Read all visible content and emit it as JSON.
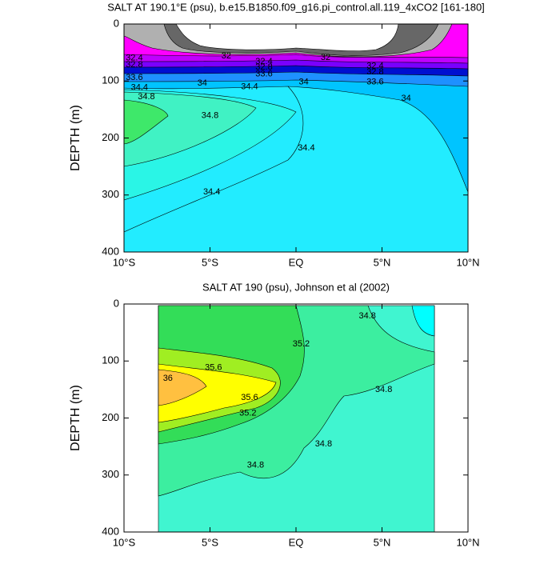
{
  "chart_data": [
    {
      "type": "contour",
      "title": "SALT AT 190.1°E (psu), b.e15.B1850.f09_g16.pi_control.all.119_4xCO2 [161-180]",
      "y_label": "DEPTH (m)",
      "xlim": [
        -10,
        10
      ],
      "ylim": [
        400,
        0
      ],
      "xticks": [
        {
          "value": -10,
          "label": "10°S"
        },
        {
          "value": -5,
          "label": "5°S"
        },
        {
          "value": 0,
          "label": "EQ"
        },
        {
          "value": 5,
          "label": "5°N"
        },
        {
          "value": 10,
          "label": "10°N"
        }
      ],
      "yticks": [
        0,
        100,
        200,
        300,
        400
      ],
      "contour_labels": [
        {
          "value": 32,
          "lon": -4.05,
          "depth": 56
        },
        {
          "value": 32,
          "lon": 1.72,
          "depth": 59
        },
        {
          "value": 32.4,
          "lon": -9.4,
          "depth": 60
        },
        {
          "value": 32.8,
          "lon": -9.4,
          "depth": 72
        },
        {
          "value": 33.6,
          "lon": -9.4,
          "depth": 94
        },
        {
          "value": 32.4,
          "lon": -1.86,
          "depth": 66
        },
        {
          "value": 32.8,
          "lon": -1.86,
          "depth": 76
        },
        {
          "value": 33.6,
          "lon": -1.86,
          "depth": 88
        },
        {
          "value": 32.4,
          "lon": 4.6,
          "depth": 74
        },
        {
          "value": 32.8,
          "lon": 4.6,
          "depth": 84
        },
        {
          "value": 33.6,
          "lon": 4.6,
          "depth": 102
        },
        {
          "value": 34.4,
          "lon": -9.1,
          "depth": 112
        },
        {
          "value": 34.8,
          "lon": -8.7,
          "depth": 128
        },
        {
          "value": 34,
          "lon": -5.45,
          "depth": 104
        },
        {
          "value": 34.4,
          "lon": -2.7,
          "depth": 110
        },
        {
          "value": 34,
          "lon": 0.45,
          "depth": 102
        },
        {
          "value": 34,
          "lon": 6.4,
          "depth": 131
        },
        {
          "value": 34.8,
          "lon": -5.0,
          "depth": 161
        },
        {
          "value": 34.4,
          "lon": 0.6,
          "depth": 218
        },
        {
          "value": 34.4,
          "lon": -4.9,
          "depth": 295
        }
      ]
    },
    {
      "type": "contour",
      "title": "SALT AT 190 (psu), Johnson et al (2002)",
      "y_label": "DEPTH (m)",
      "xlim": [
        -10,
        10
      ],
      "ylim": [
        400,
        0
      ],
      "xticks": [
        {
          "value": -10,
          "label": "10°S"
        },
        {
          "value": -5,
          "label": "5°S"
        },
        {
          "value": 0,
          "label": "EQ"
        },
        {
          "value": 5,
          "label": "5°N"
        },
        {
          "value": 10,
          "label": "10°N"
        }
      ],
      "yticks": [
        0,
        100,
        200,
        300,
        400
      ],
      "contour_labels": [
        {
          "value": 35.6,
          "lon": -4.8,
          "depth": 112
        },
        {
          "value": 36,
          "lon": -7.45,
          "depth": 131
        },
        {
          "value": 35.6,
          "lon": -2.7,
          "depth": 164
        },
        {
          "value": 35.2,
          "lon": -2.8,
          "depth": 192
        },
        {
          "value": 35.2,
          "lon": 0.3,
          "depth": 70
        },
        {
          "value": 34.8,
          "lon": 4.15,
          "depth": 21
        },
        {
          "value": 34.8,
          "lon": 5.1,
          "depth": 150
        },
        {
          "value": 34.8,
          "lon": 1.6,
          "depth": 246
        },
        {
          "value": 34.8,
          "lon": -2.35,
          "depth": 283
        }
      ]
    }
  ]
}
